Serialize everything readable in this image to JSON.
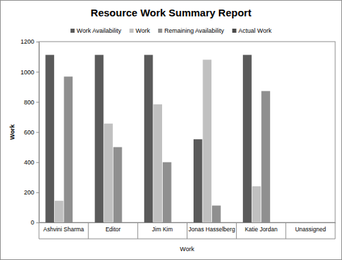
{
  "chart_data": {
    "type": "bar",
    "title": "Resource Work Summary Report",
    "x_label": "Work",
    "y_label": "Work",
    "categories": [
      "Ashvini Sharma",
      "Editor",
      "Jim Kim",
      "Jonas Hasselberg",
      "Katie Jordan",
      "Unassigned"
    ],
    "series": [
      {
        "name": "Work Availability",
        "color": "#5a5a5a",
        "values": [
          1112,
          1112,
          1112,
          552,
          1112,
          0
        ]
      },
      {
        "name": "Work",
        "color": "#c0c0c0",
        "values": [
          144,
          656,
          784,
          1080,
          240,
          0
        ]
      },
      {
        "name": "Remaining Availability",
        "color": "#8f8f8f",
        "values": [
          968,
          500,
          400,
          112,
          872,
          0
        ]
      },
      {
        "name": "Actual Work",
        "color": "#4a4a4a",
        "values": [
          0,
          0,
          0,
          0,
          0,
          0
        ]
      }
    ],
    "ylim": [
      0,
      1200
    ],
    "yticks": [
      0,
      200,
      400,
      600,
      800,
      1000,
      1200
    ],
    "grid": false,
    "legend": "top"
  }
}
